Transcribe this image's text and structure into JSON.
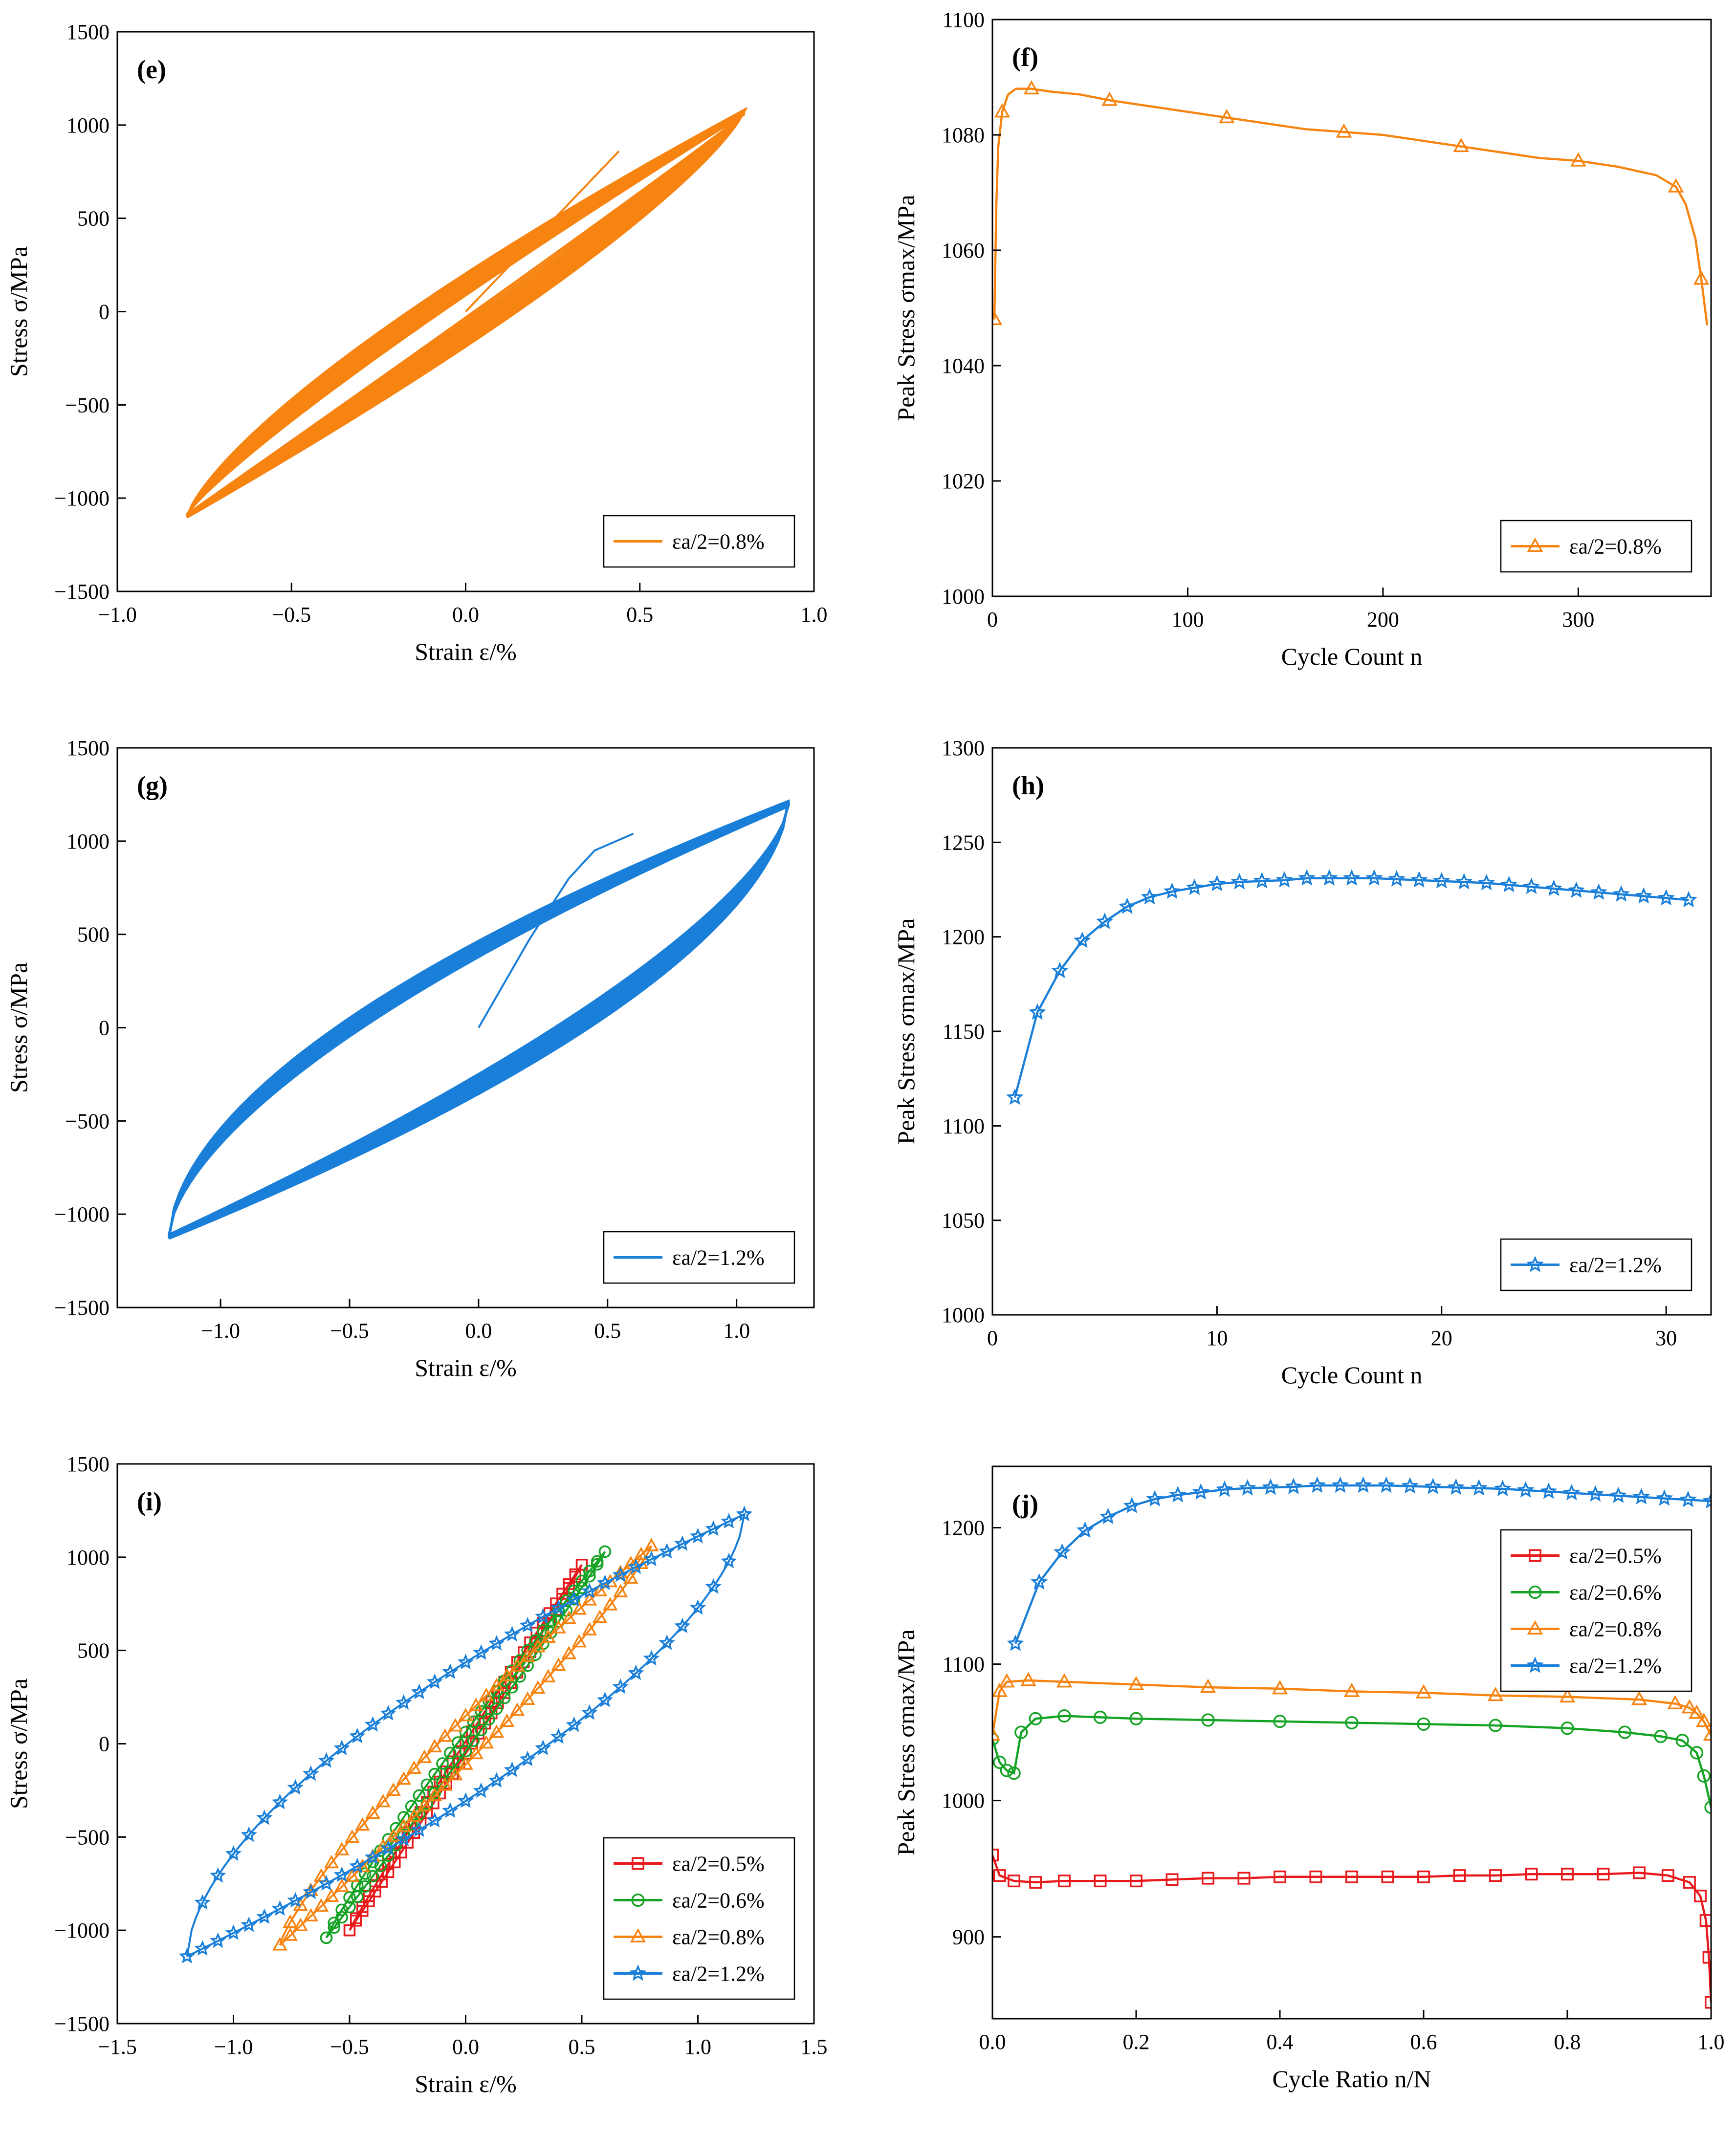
{
  "colors": {
    "s05": "#e8191d",
    "s06": "#14a324",
    "s08": "#f78411",
    "s12": "#1a7fd8",
    "axis": "#000000"
  },
  "chart_data": [
    {
      "id": "e",
      "type": "line",
      "panel_label": "(e)",
      "xlabel": "Strain ε/%",
      "ylabel": "Stress σ/MPa",
      "xlim": [
        -1.0,
        1.0
      ],
      "ylim": [
        -1500,
        1500
      ],
      "xticks": [
        -1.0,
        -0.5,
        0.0,
        0.5,
        1.0
      ],
      "xtick_labels": [
        "−1.0",
        "−0.5",
        "0.0",
        "0.5",
        "1.0"
      ],
      "yticks": [
        -1500,
        -1000,
        -500,
        0,
        500,
        1000,
        1500
      ],
      "ytick_labels": [
        "−1500",
        "−1000",
        "−500",
        "0",
        "500",
        "1000",
        "1500"
      ],
      "legend_pos": "bottom-right",
      "series": [
        {
          "name": "εa/2=0.8%",
          "amp": 0.8,
          "color": "s08",
          "marker": "triangle",
          "loop": {
            "sp": 1070,
            "sn": -1095,
            "pc": 1.15,
            "pt": 1.25,
            "count": 12,
            "spread": 55
          },
          "initial": {
            "x": [
              0.0,
              0.44
            ],
            "y": [
              0,
              860
            ]
          }
        }
      ]
    },
    {
      "id": "f",
      "type": "line",
      "panel_label": "(f)",
      "xlabel": "Cycle Count n",
      "ylabel": "Peak Stress σmax/MPa",
      "xlim": [
        0,
        368
      ],
      "ylim": [
        1000,
        1100
      ],
      "xticks": [
        0,
        100,
        200,
        300
      ],
      "xtick_labels": [
        "0",
        "100",
        "200",
        "300"
      ],
      "yticks": [
        1000,
        1020,
        1040,
        1060,
        1080,
        1100
      ],
      "ytick_labels": [
        "1000",
        "1020",
        "1040",
        "1060",
        "1080",
        "1100"
      ],
      "legend_pos": "bottom-right",
      "series": [
        {
          "name": "εa/2=0.8%",
          "color": "s08",
          "marker": "triangle",
          "marker_every": 3,
          "x": [
            1,
            2,
            3,
            5,
            8,
            12,
            20,
            30,
            45,
            60,
            80,
            100,
            120,
            140,
            160,
            180,
            200,
            220,
            240,
            260,
            280,
            300,
            320,
            340,
            350,
            355,
            360,
            363,
            366
          ],
          "y": [
            1048,
            1068,
            1078,
            1084,
            1087,
            1088,
            1088,
            1087.5,
            1087,
            1086,
            1085,
            1084,
            1083,
            1082,
            1081,
            1080.5,
            1080,
            1079,
            1078,
            1077,
            1076,
            1075.5,
            1074.5,
            1073,
            1071,
            1068,
            1062,
            1055,
            1047
          ]
        }
      ]
    },
    {
      "id": "g",
      "type": "line",
      "panel_label": "(g)",
      "xlabel": "Strain ε/%",
      "ylabel": "Stress σ/MPa",
      "xlim": [
        -1.4,
        1.3
      ],
      "ylim": [
        -1500,
        1500
      ],
      "xticks": [
        -1.0,
        -0.5,
        0.0,
        0.5,
        1.0
      ],
      "xtick_labels": [
        "−1.0",
        "−0.5",
        "0.0",
        "0.5",
        "1.0"
      ],
      "yticks": [
        -1500,
        -1000,
        -500,
        0,
        500,
        1000,
        1500
      ],
      "ytick_labels": [
        "−1500",
        "−1000",
        "−500",
        "0",
        "500",
        "1000",
        "1500"
      ],
      "legend_pos": "bottom-right",
      "series": [
        {
          "name": "εa/2=1.2%",
          "amp": 1.2,
          "color": "s12",
          "marker": "star",
          "loop": {
            "sp": 1200,
            "sn": -1120,
            "pc": 1.6,
            "pt": 1.7,
            "count": 12,
            "spread": 70
          },
          "initial": {
            "x": [
              0.0,
              0.2,
              0.35,
              0.45,
              0.6
            ],
            "y": [
              0,
              480,
              800,
              950,
              1040
            ]
          }
        }
      ]
    },
    {
      "id": "h",
      "type": "line",
      "panel_label": "(h)",
      "xlabel": "Cycle Count n",
      "ylabel": "Peak Stress σmax/MPa",
      "xlim": [
        0,
        32
      ],
      "ylim": [
        1000,
        1300
      ],
      "xticks": [
        0,
        10,
        20,
        30
      ],
      "xtick_labels": [
        "0",
        "10",
        "20",
        "30"
      ],
      "yticks": [
        1000,
        1050,
        1100,
        1150,
        1200,
        1250,
        1300
      ],
      "ytick_labels": [
        "1000",
        "1050",
        "1100",
        "1150",
        "1200",
        "1250",
        "1300"
      ],
      "legend_pos": "bottom-right",
      "series": [
        {
          "name": "εa/2=1.2%",
          "color": "s12",
          "marker": "star",
          "marker_every": 1,
          "x": [
            1,
            2,
            3,
            4,
            5,
            6,
            7,
            8,
            9,
            10,
            11,
            12,
            13,
            14,
            15,
            16,
            17,
            18,
            19,
            20,
            21,
            22,
            23,
            24,
            25,
            26,
            27,
            28,
            29,
            30,
            31
          ],
          "y": [
            1115,
            1160,
            1182,
            1198,
            1208,
            1216,
            1221,
            1224,
            1226,
            1228,
            1229,
            1229.5,
            1230,
            1231,
            1231,
            1231,
            1231,
            1230.5,
            1230,
            1229.5,
            1229,
            1228.5,
            1227.5,
            1226.5,
            1225.5,
            1224.5,
            1223.5,
            1222.5,
            1221.5,
            1220.5,
            1219.5
          ]
        }
      ]
    },
    {
      "id": "i",
      "type": "line",
      "panel_label": "(i)",
      "xlabel": "Strain ε/%",
      "ylabel": "Stress σ/MPa",
      "xlim": [
        -1.5,
        1.5
      ],
      "ylim": [
        -1500,
        1500
      ],
      "xticks": [
        -1.5,
        -1.0,
        -0.5,
        0.0,
        0.5,
        1.0,
        1.5
      ],
      "xtick_labels": [
        "−1.5",
        "−1.0",
        "−0.5",
        "0.0",
        "0.5",
        "1.0",
        "1.5"
      ],
      "yticks": [
        -1500,
        -1000,
        -500,
        0,
        500,
        1000,
        1500
      ],
      "ytick_labels": [
        "−1500",
        "−1000",
        "−500",
        "0",
        "500",
        "1000",
        "1500"
      ],
      "legend_pos": "bottom-right",
      "series": [
        {
          "name": "εa/2=0.5%",
          "amp": 0.5,
          "color": "s05",
          "marker": "square",
          "loop": {
            "sp": 960,
            "sn": -1000,
            "pc": 1.05,
            "pt": 1.05,
            "count": 1,
            "spread": 0
          }
        },
        {
          "name": "εa/2=0.6%",
          "amp": 0.6,
          "color": "s06",
          "marker": "circle",
          "loop": {
            "sp": 1030,
            "sn": -1040,
            "pc": 1.05,
            "pt": 1.1,
            "count": 1,
            "spread": 0
          }
        },
        {
          "name": "εa/2=0.8%",
          "amp": 0.8,
          "color": "s08",
          "marker": "triangle",
          "loop": {
            "sp": 1060,
            "sn": -1080,
            "pc": 1.15,
            "pt": 1.25,
            "count": 1,
            "spread": 0
          }
        },
        {
          "name": "εa/2=1.2%",
          "amp": 1.2,
          "color": "s12",
          "marker": "star",
          "loop": {
            "sp": 1230,
            "sn": -1140,
            "pc": 1.6,
            "pt": 1.7,
            "count": 1,
            "spread": 0
          }
        }
      ]
    },
    {
      "id": "j",
      "type": "line",
      "panel_label": "(j)",
      "xlabel": "Cycle Ratio n/N",
      "ylabel": "Peak Stress σmax/MPa",
      "xlim": [
        0.0,
        1.0
      ],
      "ylim": [
        840,
        1245
      ],
      "xticks": [
        0.0,
        0.2,
        0.4,
        0.6,
        0.8,
        1.0
      ],
      "xtick_labels": [
        "0.0",
        "0.2",
        "0.4",
        "0.6",
        "0.8",
        "1.0"
      ],
      "yticks": [
        900,
        1000,
        1100,
        1200
      ],
      "ytick_labels": [
        "900",
        "1000",
        "1100",
        "1200"
      ],
      "legend_pos": "top-right",
      "series": [
        {
          "name": "εa/2=0.5%",
          "color": "s05",
          "marker": "square",
          "marker_every": 1,
          "x": [
            0.0,
            0.01,
            0.03,
            0.06,
            0.1,
            0.15,
            0.2,
            0.25,
            0.3,
            0.35,
            0.4,
            0.45,
            0.5,
            0.55,
            0.6,
            0.65,
            0.7,
            0.75,
            0.8,
            0.85,
            0.9,
            0.94,
            0.97,
            0.985,
            0.993,
            0.997,
            1.0
          ],
          "y": [
            960,
            945,
            941,
            940,
            941,
            941,
            941,
            942,
            943,
            943,
            944,
            944,
            944,
            944,
            944,
            945,
            945,
            946,
            946,
            946,
            947,
            945,
            940,
            930,
            912,
            885,
            852
          ]
        },
        {
          "name": "εa/2=0.6%",
          "color": "s06",
          "marker": "circle",
          "marker_every": 1,
          "x": [
            0.0,
            0.01,
            0.02,
            0.03,
            0.04,
            0.06,
            0.1,
            0.15,
            0.2,
            0.3,
            0.4,
            0.5,
            0.6,
            0.7,
            0.8,
            0.88,
            0.93,
            0.96,
            0.98,
            0.99,
            1.0
          ],
          "y": [
            1045,
            1028,
            1022,
            1020,
            1050,
            1060,
            1062,
            1061,
            1060,
            1059,
            1058,
            1057,
            1056,
            1055,
            1053,
            1050,
            1047,
            1044,
            1035,
            1018,
            995
          ]
        },
        {
          "name": "εa/2=0.8%",
          "color": "s08",
          "marker": "triangle",
          "marker_every": 1,
          "x": [
            0.0,
            0.01,
            0.02,
            0.05,
            0.1,
            0.2,
            0.3,
            0.4,
            0.5,
            0.6,
            0.7,
            0.8,
            0.9,
            0.95,
            0.97,
            0.98,
            0.99,
            1.0
          ],
          "y": [
            1048,
            1080,
            1087,
            1088,
            1087,
            1085,
            1083,
            1082,
            1080,
            1079,
            1077,
            1076,
            1074,
            1071,
            1068,
            1064,
            1058,
            1048
          ]
        },
        {
          "name": "εa/2=1.2%",
          "color": "s12",
          "marker": "star",
          "marker_every": 1,
          "x": [
            0.032,
            0.065,
            0.097,
            0.129,
            0.161,
            0.194,
            0.226,
            0.258,
            0.29,
            0.323,
            0.355,
            0.387,
            0.419,
            0.452,
            0.484,
            0.516,
            0.548,
            0.581,
            0.613,
            0.645,
            0.677,
            0.71,
            0.742,
            0.774,
            0.806,
            0.839,
            0.871,
            0.903,
            0.935,
            0.968,
            1.0
          ],
          "y": [
            1115,
            1160,
            1182,
            1198,
            1208,
            1216,
            1221,
            1224,
            1226,
            1228,
            1229,
            1229.5,
            1230,
            1231,
            1231,
            1231,
            1231,
            1230.5,
            1230,
            1229.5,
            1229,
            1228.5,
            1227.5,
            1226.5,
            1225.5,
            1224.5,
            1223.5,
            1222.5,
            1221.5,
            1220.5,
            1219.5
          ]
        }
      ]
    }
  ]
}
